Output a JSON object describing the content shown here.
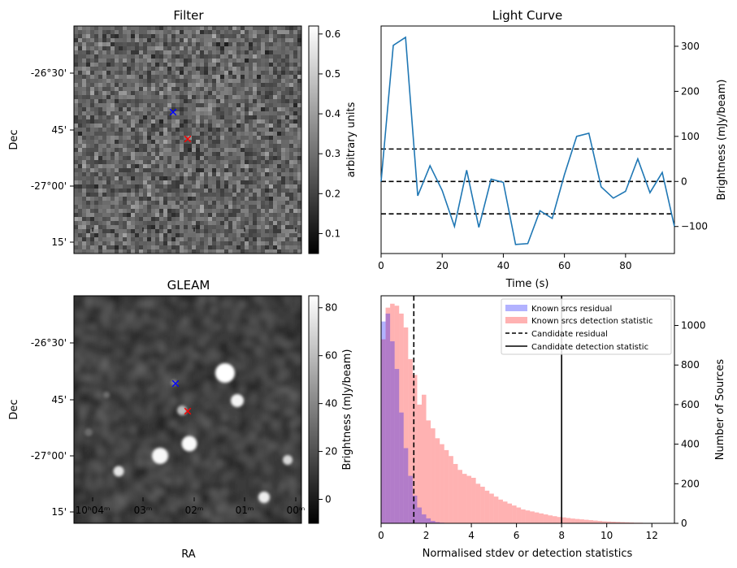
{
  "chart_data": [
    {
      "type": "heatmap",
      "title": "Filter",
      "ylabel": "Dec",
      "y_ticks": [
        "-26°30'",
        "45'",
        "-27°00'",
        "15'"
      ],
      "colorbar": {
        "label": "arbitrary units",
        "range": [
          0.05,
          0.62
        ],
        "ticks": [
          "0.1",
          "0.2",
          "0.3",
          "0.4",
          "0.5",
          "0.6"
        ],
        "colormap": "gray"
      },
      "markers": [
        {
          "color": "#0000ff",
          "symbol": "x"
        },
        {
          "color": "#ff0000",
          "symbol": "x"
        }
      ]
    },
    {
      "type": "line",
      "title": "Light Curve",
      "xlabel": "Time (s)",
      "ylabel": "Brightness (mJy/beam)",
      "xlim": [
        0,
        96
      ],
      "ylim": [
        -160,
        345
      ],
      "x_ticks": [
        "0",
        "20",
        "40",
        "60",
        "80"
      ],
      "y_ticks": [
        "−100",
        "0",
        "100",
        "200",
        "300"
      ],
      "x": [
        0,
        4,
        8,
        12,
        16,
        20,
        24,
        28,
        32,
        36,
        40,
        44,
        48,
        52,
        56,
        60,
        64,
        68,
        72,
        76,
        80,
        84,
        88,
        92,
        96
      ],
      "values": [
        0,
        302,
        320,
        -32,
        35,
        -20,
        -100,
        25,
        -102,
        5,
        -2,
        -140,
        -138,
        -65,
        -82,
        15,
        100,
        107,
        -12,
        -37,
        -22,
        50,
        -25,
        20,
        -100
      ],
      "color": "#1f77b4",
      "hlines": [
        72,
        0,
        -72
      ]
    },
    {
      "type": "heatmap",
      "title": "GLEAM",
      "xlabel": "RA",
      "ylabel": "Dec",
      "x_ticks": [
        "10ʰ04ᵐ",
        "03ᵐ",
        "02ᵐ",
        "01ᵐ",
        "00ᵐ"
      ],
      "y_ticks": [
        "-26°30'",
        "45'",
        "-27°00'",
        "15'"
      ],
      "colorbar": {
        "label": "Brightness (mJy/beam)",
        "range": [
          -10,
          85
        ],
        "ticks": [
          "0",
          "20",
          "40",
          "60",
          "80"
        ],
        "colormap": "gray"
      },
      "markers": [
        {
          "color": "#0000ff",
          "symbol": "x"
        },
        {
          "color": "#ff0000",
          "symbol": "x"
        }
      ]
    },
    {
      "type": "bar",
      "xlabel": "Normalised stdev or detection statistics",
      "ylabel": "Number of Sources",
      "xlim": [
        0,
        13
      ],
      "ylim": [
        0,
        1150
      ],
      "x_ticks": [
        "0",
        "2",
        "4",
        "6",
        "8",
        "10",
        "12"
      ],
      "y_ticks": [
        "0",
        "200",
        "400",
        "600",
        "800",
        "1000"
      ],
      "bin_width": 0.2,
      "series": [
        {
          "name": "Known srcs residual",
          "color": "#0000ff",
          "bin_start": 0.0,
          "values": [
            1020,
            1060,
            920,
            780,
            560,
            380,
            240,
            140,
            80,
            45,
            25,
            12,
            6,
            3,
            2,
            1,
            0,
            0,
            0,
            0
          ]
        },
        {
          "name": "Known srcs detection statistic",
          "color": "#ff0000",
          "bin_start": 0.0,
          "values": [
            930,
            1090,
            1110,
            1100,
            1060,
            990,
            830,
            750,
            600,
            650,
            520,
            480,
            430,
            400,
            370,
            340,
            300,
            270,
            250,
            240,
            230,
            200,
            185,
            165,
            150,
            135,
            120,
            110,
            100,
            90,
            80,
            70,
            65,
            60,
            55,
            50,
            45,
            40,
            36,
            32,
            30,
            27,
            24,
            22,
            20,
            18,
            16,
            14,
            12,
            10,
            9,
            8,
            7,
            6,
            5,
            4,
            3,
            3,
            2,
            2
          ]
        }
      ],
      "vlines": [
        {
          "name": "Candidate residual",
          "x": 1.45,
          "style": "dashed"
        },
        {
          "name": "Candidate detection statistic",
          "x": 8.0,
          "style": "solid"
        }
      ],
      "legend": "top-right"
    }
  ]
}
